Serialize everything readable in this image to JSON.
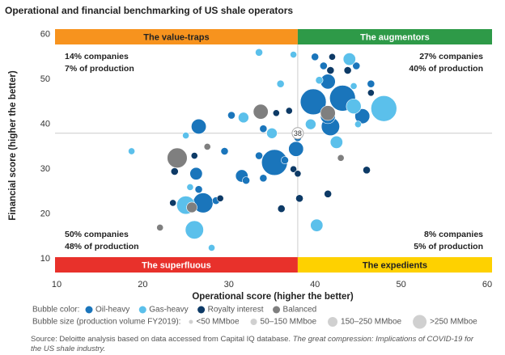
{
  "chart_data": {
    "type": "bubble",
    "title": "Operational and financial benchmarking of US shale operators",
    "x_label": "Operational score (higher the better)",
    "y_label": "Financial score (higher the better)",
    "xlim": [
      10,
      60
    ],
    "xticks": [
      10,
      20,
      30,
      40,
      50,
      60
    ],
    "ylim": [
      7,
      61
    ],
    "yticks": [
      10,
      20,
      30,
      40,
      50,
      60
    ],
    "threshold": 38,
    "quadrants": [
      {
        "name": "The value-traps",
        "color": "#f7931e",
        "text_color": "#222",
        "lines": [
          "14% companies",
          "7% of production"
        ]
      },
      {
        "name": "The augmentors",
        "color": "#2e9a48",
        "text_color": "#fff",
        "lines": [
          "27% companies",
          "40% of production"
        ]
      },
      {
        "name": "The superfluous",
        "color": "#e8312b",
        "text_color": "#fff",
        "lines": [
          "50% companies",
          "48% of production"
        ]
      },
      {
        "name": "The expedients",
        "color": "#fed100",
        "text_color": "#222",
        "lines": [
          "8% companies",
          "5% of production"
        ]
      }
    ],
    "color_legend_title": "Bubble color:",
    "size_legend_title": "Bubble size (production volume FY2019):",
    "size_legend": [
      "<50 MMboe",
      "50–150 MMboe",
      "150–250 MMboe",
      ">250 MMboe"
    ],
    "series": [
      {
        "name": "Oil-heavy",
        "color": "#1a75bb",
        "x": [
          39.8,
          43.2,
          35.3,
          27,
          41.8,
          41.5,
          45.5,
          41.5,
          26.5,
          26.2,
          31.5,
          37.8,
          26.5,
          46.5,
          44.8,
          41,
          40,
          33.5,
          34,
          32,
          38,
          36.5,
          29.5,
          30.3,
          28.5,
          34
        ],
        "values": [
          45,
          45.8,
          31.5,
          22.5,
          39.5,
          41.8,
          41.8,
          49.5,
          39.5,
          29,
          28.5,
          34.5,
          25.5,
          49,
          53,
          53,
          55,
          33,
          28,
          27.5,
          37,
          32,
          34,
          42,
          23,
          39
        ],
        "sizes": [
          300,
          300,
          300,
          180,
          150,
          100,
          100,
          100,
          100,
          70,
          70,
          100,
          25,
          25,
          25,
          25,
          25,
          25,
          25,
          25,
          25,
          25,
          25,
          25,
          25,
          25
        ]
      },
      {
        "name": "Gas-heavy",
        "color": "#5bc0eb",
        "x": [
          48,
          25,
          26,
          44.5,
          44,
          42.5,
          40.2,
          31.7,
          35,
          33.5,
          39.5,
          36,
          18.7,
          25,
          25.5,
          28,
          40.5,
          44.5,
          37.5,
          45
        ],
        "values": [
          43.5,
          22,
          16.5,
          44,
          54.5,
          36,
          17.5,
          41.5,
          38,
          56,
          40,
          49,
          34,
          37.5,
          26,
          12.5,
          49.8,
          48.5,
          55.5,
          40
        ],
        "sizes": [
          300,
          150,
          150,
          100,
          70,
          70,
          70,
          50,
          50,
          25,
          50,
          25,
          20,
          20,
          20,
          20,
          25,
          20,
          20,
          20
        ]
      },
      {
        "name": "Royalty interest",
        "color": "#0d3a66",
        "x": [
          41.8,
          43.8,
          46,
          41.5,
          38.2,
          36.1,
          23.7,
          23.5,
          46.5,
          37.5,
          37,
          42,
          35.5,
          29,
          26,
          38
        ],
        "values": [
          52,
          52,
          29.8,
          24.5,
          23.5,
          21.2,
          29.5,
          22.5,
          47,
          30,
          43,
          55,
          42.5,
          23.5,
          33,
          29
        ],
        "sizes": [
          25,
          25,
          25,
          25,
          25,
          25,
          25,
          20,
          20,
          20,
          20,
          20,
          20,
          20,
          20,
          20
        ]
      },
      {
        "name": "Balanced",
        "color": "#7f7f7f",
        "x": [
          24,
          33.7,
          41.5,
          25.7,
          22,
          27.5,
          43
        ],
        "values": [
          32.5,
          42.8,
          42.5,
          21.5,
          17,
          35,
          32.5
        ],
        "sizes": [
          180,
          100,
          100,
          50,
          20,
          20,
          20
        ]
      }
    ],
    "source_prefix": "Source: Deloitte analysis based on data accessed from Capital IQ database. ",
    "source_title": "The great compression: Implications of COVID-19 for the US shale industry."
  }
}
